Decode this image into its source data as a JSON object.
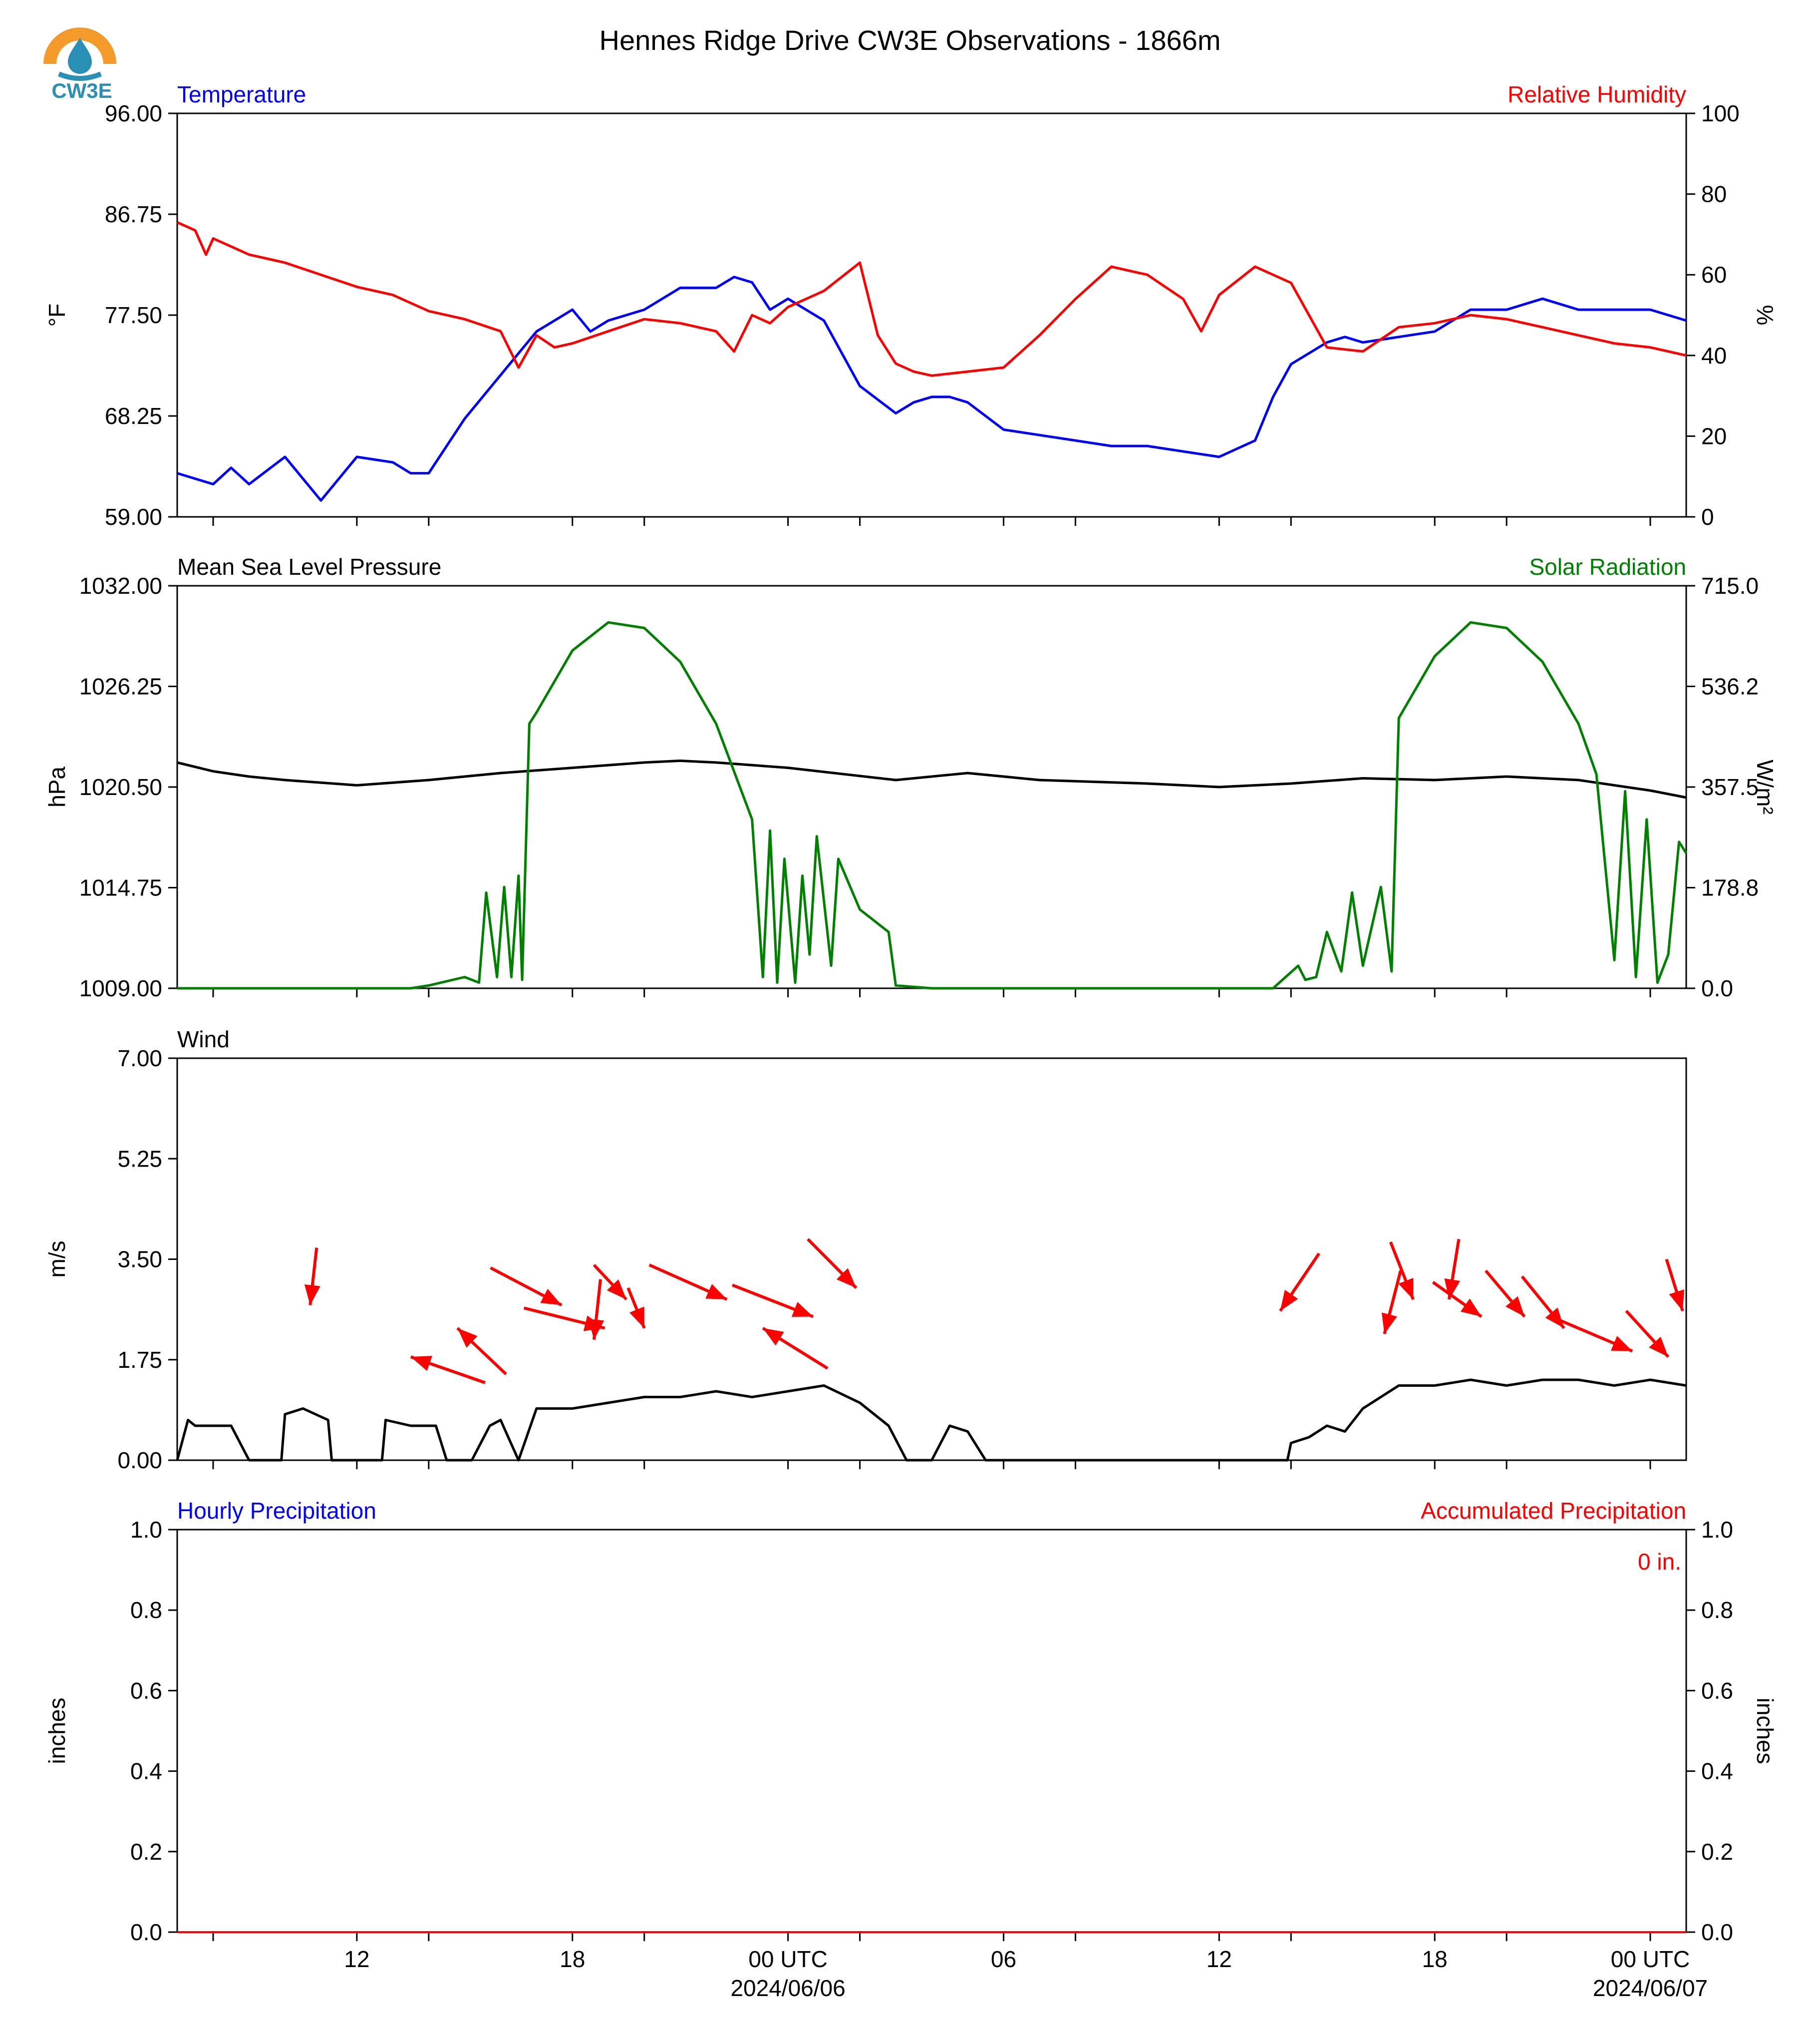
{
  "title": "Hennes Ridge Drive CW3E Observations - 1866m",
  "logo": {
    "text": "CW3E",
    "icon": "water-drop-sun-logo",
    "colors": {
      "sun": "#f39a2b",
      "drop": "#2a8fb5"
    }
  },
  "colors": {
    "blue": "#0000ff",
    "red": "#ff0000",
    "green": "#008000",
    "black": "#000000"
  },
  "time_axis": {
    "start_hour": 0,
    "end_hour": 42,
    "tick_hours": [
      1,
      5,
      7,
      11,
      13,
      17,
      19,
      23,
      25,
      29,
      31,
      35,
      37,
      41
    ],
    "labels": [
      {
        "hour": 5,
        "text": "12"
      },
      {
        "hour": 11,
        "text": "18"
      },
      {
        "hour": 17,
        "text": "00 UTC",
        "sub": "2024/06/06"
      },
      {
        "hour": 23,
        "text": "06"
      },
      {
        "hour": 29,
        "text": "12"
      },
      {
        "hour": 35,
        "text": "18"
      },
      {
        "hour": 41,
        "text": "00 UTC",
        "sub": "2024/06/07"
      }
    ]
  },
  "panels": {
    "temp_rh": {
      "left_title": "Temperature",
      "right_title": "Relative Humidity",
      "left_ylabel": "°F",
      "right_ylabel": "%",
      "left_ticks": [
        "96.00",
        "86.75",
        "77.50",
        "68.25",
        "59.00"
      ],
      "right_ticks": [
        "100",
        "80",
        "60",
        "40",
        "20",
        "0"
      ]
    },
    "pressure_solar": {
      "left_title": "Mean Sea Level Pressure",
      "right_title": "Solar Radiation",
      "left_ylabel": "hPa",
      "right_ylabel": "W/m²",
      "left_ticks": [
        "1032.00",
        "1026.25",
        "1020.50",
        "1014.75",
        "1009.00"
      ],
      "right_ticks": [
        "715.0",
        "536.2",
        "357.5",
        "178.8",
        "0.0"
      ]
    },
    "wind": {
      "left_title": "Wind",
      "left_ylabel": "m/s",
      "left_ticks": [
        "7.00",
        "5.25",
        "3.50",
        "1.75",
        "0.00"
      ]
    },
    "precip": {
      "left_title": "Hourly Precipitation",
      "right_title": "Accumulated Precipitation",
      "left_ylabel": "inches",
      "right_ylabel": "inches",
      "left_ticks": [
        "1.0",
        "0.8",
        "0.6",
        "0.4",
        "0.2",
        "0.0"
      ],
      "right_ticks": [
        "1.0",
        "0.8",
        "0.6",
        "0.4",
        "0.2",
        "0.0"
      ],
      "total_label": "0 in."
    }
  },
  "chart_data": [
    {
      "type": "line",
      "title": "Temperature / Relative Humidity",
      "x_unit": "hours since 07 UTC 2024/06/05",
      "series": [
        {
          "name": "Temperature",
          "unit": "°F",
          "axis": "left",
          "ylim": [
            59,
            96
          ],
          "color": "#0000ff",
          "x": [
            0,
            1,
            1.5,
            2,
            3,
            4,
            5,
            6,
            6.5,
            7,
            8,
            9,
            10,
            11,
            11.5,
            12,
            13,
            14,
            15,
            15.5,
            16,
            16.5,
            17,
            18,
            19,
            20,
            20.5,
            21,
            21.5,
            22,
            23,
            24,
            25,
            26,
            27,
            28,
            29,
            30,
            30.5,
            31,
            32,
            32.5,
            33,
            34,
            35,
            36,
            37,
            38,
            39,
            40,
            41,
            41.5,
            42
          ],
          "y": [
            63,
            62,
            63.5,
            62,
            64.5,
            60.5,
            64.5,
            64,
            63,
            63,
            68,
            72,
            76,
            78,
            76,
            77,
            78,
            80,
            80,
            81,
            80.5,
            78,
            79,
            77,
            71,
            68.5,
            69.5,
            70,
            70,
            69.5,
            67,
            66.5,
            66,
            65.5,
            65.5,
            65,
            64.5,
            66,
            70,
            73,
            75,
            75.5,
            75,
            75.5,
            76,
            78,
            78,
            79,
            78,
            78,
            78,
            77.5,
            77
          ]
        },
        {
          "name": "Relative Humidity",
          "unit": "%",
          "axis": "right",
          "ylim": [
            0,
            100
          ],
          "color": "#ff0000",
          "x": [
            0,
            0.5,
            0.8,
            1,
            2,
            3,
            4,
            5,
            6,
            7,
            8,
            9,
            9.5,
            10,
            10.5,
            11,
            12,
            13,
            14,
            15,
            15.5,
            16,
            16.5,
            17,
            18,
            19,
            19.5,
            20,
            20.5,
            21,
            22,
            23,
            24,
            25,
            26,
            27,
            28,
            28.5,
            29,
            30,
            31,
            31.5,
            32,
            33,
            33.5,
            34,
            35,
            36,
            37,
            38,
            39,
            40,
            41,
            41.5,
            42
          ],
          "y": [
            73,
            71,
            65,
            69,
            65,
            63,
            60,
            57,
            55,
            51,
            49,
            46,
            37,
            45,
            42,
            43,
            46,
            49,
            48,
            46,
            41,
            50,
            48,
            52,
            56,
            63,
            45,
            38,
            36,
            35,
            36,
            37,
            45,
            54,
            62,
            60,
            54,
            46,
            55,
            62,
            58,
            50,
            42,
            41,
            44,
            47,
            48,
            50,
            49,
            47,
            45,
            43,
            42,
            41,
            40
          ]
        }
      ]
    },
    {
      "type": "line",
      "title": "Mean Sea Level Pressure / Solar Radiation",
      "x_unit": "hours since 07 UTC 2024/06/05",
      "series": [
        {
          "name": "Mean Sea Level Pressure",
          "unit": "hPa",
          "axis": "left",
          "ylim": [
            1009,
            1032
          ],
          "color": "#000000",
          "x": [
            0,
            1,
            2,
            3,
            5,
            7,
            9,
            11,
            13,
            14,
            15,
            17,
            20,
            22,
            24,
            27,
            29,
            31,
            33,
            35,
            37,
            39,
            41,
            42
          ],
          "y": [
            1021.9,
            1021.4,
            1021.1,
            1020.9,
            1020.6,
            1020.9,
            1021.3,
            1021.6,
            1021.9,
            1022.0,
            1021.9,
            1021.6,
            1020.9,
            1021.3,
            1020.9,
            1020.7,
            1020.5,
            1020.7,
            1021.0,
            1020.9,
            1021.1,
            1020.9,
            1020.3,
            1019.9
          ]
        },
        {
          "name": "Solar Radiation",
          "unit": "W/m²",
          "axis": "right",
          "ylim": [
            0,
            715
          ],
          "color": "#008000",
          "x": [
            0,
            6.5,
            7,
            8,
            8.4,
            8.6,
            8.9,
            9.1,
            9.3,
            9.5,
            9.6,
            9.8,
            10,
            11,
            12,
            13,
            14,
            15,
            16,
            16.3,
            16.5,
            16.7,
            16.9,
            17.2,
            17.4,
            17.6,
            17.8,
            18.2,
            18.4,
            19.0,
            19.8,
            20,
            21,
            24,
            30.5,
            31.2,
            31.4,
            31.7,
            32,
            32.4,
            32.7,
            33,
            33.5,
            33.8,
            34,
            35,
            36,
            37,
            38,
            39,
            39.5,
            40,
            40.3,
            40.6,
            40.9,
            41.2,
            41.5,
            41.8,
            42
          ],
          "y": [
            0,
            0,
            5,
            20,
            10,
            170,
            20,
            180,
            20,
            200,
            15,
            470,
            490,
            600,
            650,
            640,
            580,
            470,
            300,
            20,
            280,
            10,
            230,
            10,
            200,
            60,
            270,
            40,
            230,
            140,
            100,
            5,
            0,
            0,
            0,
            40,
            15,
            20,
            100,
            30,
            170,
            40,
            180,
            30,
            480,
            590,
            650,
            640,
            580,
            470,
            380,
            50,
            350,
            20,
            300,
            10,
            60,
            260,
            240
          ]
        }
      ]
    },
    {
      "type": "line",
      "title": "Wind",
      "x_unit": "hours since 07 UTC 2024/06/05",
      "series": [
        {
          "name": "Wind speed",
          "unit": "m/s",
          "ylim": [
            0,
            7
          ],
          "color": "#000000",
          "x": [
            0,
            0.3,
            0.5,
            1.5,
            2,
            2.9,
            3,
            3.5,
            4.2,
            4.3,
            5,
            5.7,
            5.8,
            6.5,
            7.2,
            7.5,
            8.2,
            8.7,
            9.0,
            9.5,
            10,
            11,
            12,
            13,
            14,
            15,
            16,
            17,
            18,
            19,
            19.8,
            20.3,
            21,
            21.5,
            22,
            22.5,
            23,
            24,
            25,
            25.5,
            26,
            27,
            28,
            29,
            30,
            30.9,
            31,
            31.5,
            32,
            32.5,
            33,
            34,
            35,
            36,
            37,
            38,
            39,
            40,
            41,
            42
          ],
          "y": [
            0,
            0.7,
            0.6,
            0.6,
            0,
            0,
            0.8,
            0.9,
            0.7,
            0,
            0,
            0,
            0.7,
            0.6,
            0.6,
            0,
            0,
            0.6,
            0.7,
            0,
            0.9,
            0.9,
            1.0,
            1.1,
            1.1,
            1.2,
            1.1,
            1.2,
            1.3,
            1.0,
            0.6,
            0,
            0,
            0.6,
            0.5,
            0,
            0,
            0,
            0,
            0,
            0,
            0,
            0,
            0,
            0,
            0,
            0.3,
            0.4,
            0.6,
            0.5,
            0.9,
            1.3,
            1.3,
            1.4,
            1.3,
            1.4,
            1.4,
            1.3,
            1.4,
            1.3
          ]
        }
      ],
      "wind_vectors": {
        "note": "arrows point in direction wind blows toward; length proportional to speed",
        "x": [
          3.7,
          6.5,
          7.8,
          10.7,
          11.6,
          11.9,
          12.5,
          13.0,
          15.3,
          16.3,
          17.7,
          18.9,
          30.7,
          33.6,
          34.4,
          35.4,
          36.3,
          37.5,
          38.6,
          40.5,
          41.5,
          41.9
        ],
        "speed": [
          2.7,
          1.8,
          2.3,
          2.7,
          2.1,
          2.3,
          2.8,
          2.3,
          2.8,
          2.3,
          2.5,
          3.0,
          2.6,
          2.2,
          2.8,
          2.8,
          2.5,
          2.5,
          2.3,
          1.9,
          1.8,
          2.6
        ],
        "to_dx": [
          -0.2,
          -2.3,
          -1.5,
          2.2,
          -0.2,
          2.5,
          1.0,
          0.5,
          2.4,
          -2.0,
          2.5,
          1.5,
          -1.2,
          -0.5,
          0.7,
          -0.3,
          1.5,
          1.2,
          1.3,
          2.3,
          1.3,
          0.5
        ],
        "to_dy": [
          -2.0,
          0.9,
          1.6,
          -1.3,
          -2.1,
          -0.7,
          -1.2,
          -1.4,
          -1.2,
          1.4,
          -1.1,
          -1.7,
          -2.0,
          -2.2,
          -2.0,
          -2.1,
          -1.2,
          -1.6,
          -1.8,
          -1.1,
          -1.6,
          -1.8
        ]
      }
    },
    {
      "type": "bar",
      "title": "Hourly / Accumulated Precipitation",
      "x_unit": "hours since 07 UTC 2024/06/05",
      "series": [
        {
          "name": "Hourly Precipitation",
          "unit": "inches",
          "ylim": [
            0,
            1
          ],
          "color": "#0000ff",
          "values": [
            0
          ]
        },
        {
          "name": "Accumulated Precipitation",
          "unit": "inches",
          "ylim": [
            0,
            1
          ],
          "color": "#ff0000",
          "values": [
            0
          ]
        }
      ]
    }
  ]
}
